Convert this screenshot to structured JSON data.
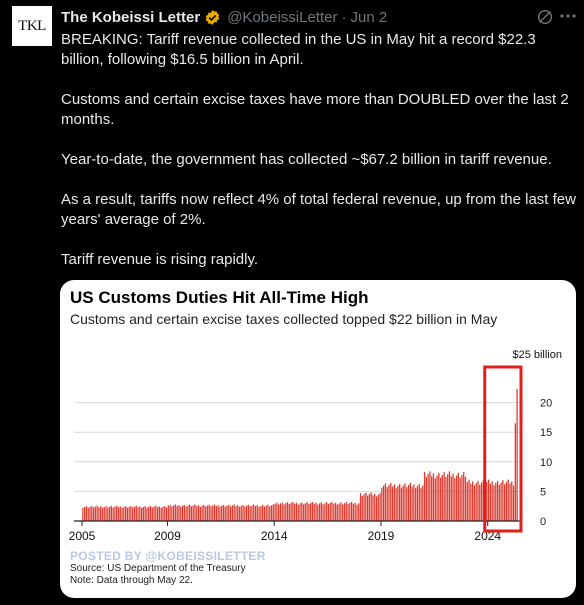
{
  "tweet": {
    "author_name": "The Kobeissi Letter",
    "avatar_text": "TKL",
    "handle": "@KobeissiLetter",
    "separator": "·",
    "date": "Jun 2",
    "paragraphs": [
      "BREAKING: Tariff revenue collected in the US in May hit a record $22.3 billion, following $16.5 billion in April.",
      "Customs and certain excise taxes have more than DOUBLED over the last 2 months.",
      "Year-to-date, the government has collected ~$67.2 billion in tariff revenue.",
      "As a result, tariffs now reflect 4% of total federal revenue, up from the last few years' average of 2%.",
      "Tariff revenue is rising rapidly."
    ]
  },
  "colors": {
    "bar": "#e03a2f",
    "highlight_box": "#e0201c",
    "verified": "#e8a800"
  },
  "card": {
    "watermark": "POSTED BY @KOBEISSILETTER",
    "source": "Source: US Department of the Treasury",
    "note": "Note: Data through May 22."
  },
  "chart_data": {
    "type": "bar",
    "title": "US Customs Duties Hit All-Time High",
    "subtitle": "Customs and certain excise taxes collected topped $22 billion in May",
    "unit_label": "$25 billion",
    "ylim": [
      0,
      25
    ],
    "yticks": [
      0,
      5,
      10,
      15,
      20
    ],
    "xticks": [
      "2005",
      "2009",
      "2014",
      "2019",
      "2024"
    ],
    "x_range": [
      "2005-01",
      "2025-05"
    ],
    "frequency": "monthly",
    "approximate_levels": [
      {
        "from": "2005-01",
        "to": "2008-12",
        "value": 2.4
      },
      {
        "from": "2009-01",
        "to": "2013-12",
        "value": 2.6
      },
      {
        "from": "2014-01",
        "to": "2017-12",
        "value": 3.0
      },
      {
        "from": "2018-01",
        "to": "2018-12",
        "value": 4.5
      },
      {
        "from": "2019-01",
        "to": "2020-12",
        "value": 6.0
      },
      {
        "from": "2021-01",
        "to": "2022-12",
        "value": 7.8
      },
      {
        "from": "2023-01",
        "to": "2025-03",
        "value": 6.5
      }
    ],
    "labeled_points": [
      {
        "x": "2025-04",
        "value": 16.5
      },
      {
        "x": "2025-05",
        "value": 22.3
      }
    ],
    "highlight": {
      "from": "2024-01",
      "to": "2025-05"
    },
    "grid": true
  }
}
